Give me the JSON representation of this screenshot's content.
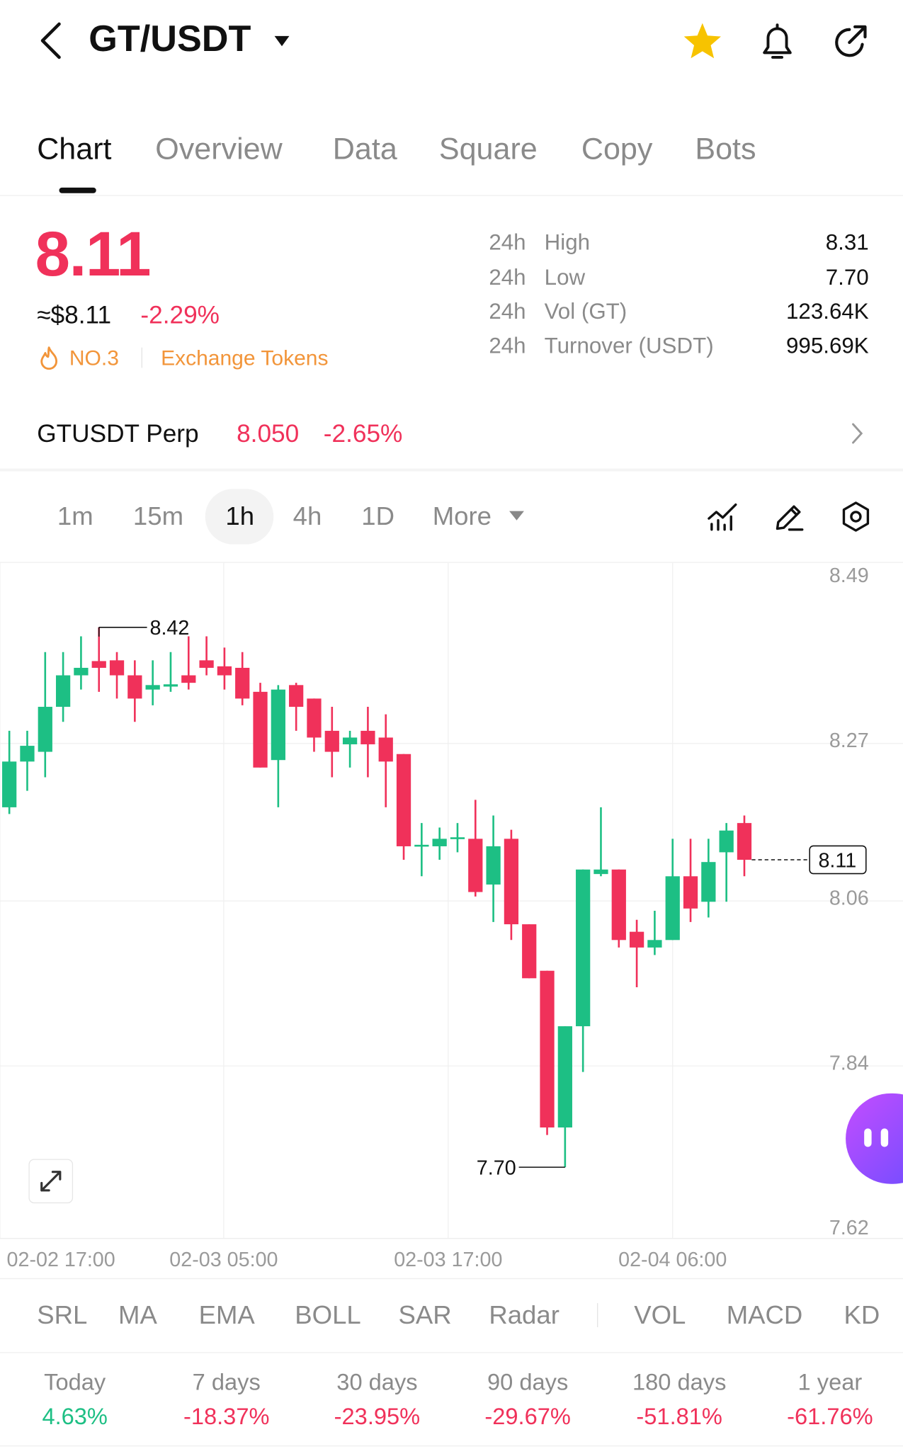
{
  "header": {
    "pair": "GT/USDT"
  },
  "tabs": [
    "Chart",
    "Overview",
    "Data",
    "Square",
    "Copy",
    "Bots"
  ],
  "price": {
    "last": "8.11",
    "usd": "≈$8.11",
    "change": "-2.29%",
    "rank": "NO.3",
    "category": "Exchange Tokens"
  },
  "stats": [
    {
      "period": "24h",
      "label": "High",
      "value": "8.31"
    },
    {
      "period": "24h",
      "label": "Low",
      "value": "7.70"
    },
    {
      "period": "24h",
      "label": "Vol (GT)",
      "value": "123.64K"
    },
    {
      "period": "24h",
      "label": "Turnover (USDT)",
      "value": "995.69K"
    }
  ],
  "perp": {
    "name": "GTUSDT Perp",
    "price": "8.050",
    "change": "-2.65%"
  },
  "timeframes": [
    "1m",
    "15m",
    "1h",
    "4h",
    "1D",
    "More"
  ],
  "chart_data": {
    "type": "candlestick",
    "up_color": "#1dbf84",
    "down_color": "#f0315a",
    "open": [
      8.18,
      8.241,
      8.254,
      8.314,
      8.356,
      8.375,
      8.376,
      8.356,
      8.337,
      8.341,
      8.356,
      8.376,
      8.368,
      8.366,
      8.334,
      8.243,
      8.343,
      8.325,
      8.282,
      8.264,
      8.282,
      8.273,
      8.251,
      8.128,
      8.128,
      8.138,
      8.138,
      8.077,
      8.138,
      8.024,
      7.962,
      7.753,
      7.888,
      8.091,
      8.097,
      8.014,
      7.993,
      8.003,
      8.088,
      8.054,
      8.12,
      8.159
    ],
    "high": [
      8.282,
      8.282,
      8.387,
      8.387,
      8.408,
      8.42,
      8.387,
      8.376,
      8.376,
      8.387,
      8.408,
      8.408,
      8.393,
      8.387,
      8.346,
      8.343,
      8.346,
      8.325,
      8.314,
      8.282,
      8.314,
      8.304,
      8.251,
      8.159,
      8.153,
      8.159,
      8.19,
      8.169,
      8.15,
      8.024,
      7.962,
      7.888,
      8.097,
      8.18,
      8.097,
      8.03,
      8.042,
      8.138,
      8.138,
      8.138,
      8.159,
      8.169
    ],
    "low": [
      8.171,
      8.202,
      8.22,
      8.294,
      8.337,
      8.334,
      8.325,
      8.294,
      8.316,
      8.334,
      8.337,
      8.356,
      8.337,
      8.316,
      8.233,
      8.18,
      8.282,
      8.254,
      8.22,
      8.233,
      8.22,
      8.18,
      8.11,
      8.088,
      8.11,
      8.12,
      8.061,
      8.027,
      8.003,
      7.952,
      7.743,
      7.7,
      7.827,
      8.088,
      7.993,
      7.94,
      7.983,
      8.003,
      8.027,
      8.033,
      8.054,
      8.088
    ],
    "close": [
      8.241,
      8.262,
      8.314,
      8.356,
      8.366,
      8.366,
      8.356,
      8.325,
      8.343,
      8.344,
      8.346,
      8.366,
      8.356,
      8.325,
      8.233,
      8.337,
      8.314,
      8.273,
      8.254,
      8.273,
      8.264,
      8.241,
      8.128,
      8.13,
      8.138,
      8.14,
      8.067,
      8.128,
      8.024,
      7.952,
      7.753,
      7.888,
      8.097,
      8.097,
      8.003,
      7.993,
      8.003,
      8.088,
      8.045,
      8.107,
      8.149,
      8.11
    ],
    "ylim": [
      7.605,
      8.506
    ],
    "yticks": [
      8.49,
      8.27,
      8.06,
      7.84,
      7.62
    ],
    "xlim": [
      -0.52,
      49.85
    ],
    "xticks": [
      {
        "value": -0.52,
        "label": "02-02 17:00"
      },
      {
        "value": 11.96,
        "label": "02-03 05:00"
      },
      {
        "value": 24.48,
        "label": "02-03 17:00"
      },
      {
        "value": 37.0,
        "label": "02-04 06:00"
      }
    ],
    "max_label": 8.42,
    "min_label": {
      "value": 7.7,
      "label": "7.70"
    },
    "last_price": 8.11
  },
  "indicators": [
    "SRL",
    "MA",
    "EMA",
    "BOLL",
    "SAR",
    "Radar",
    "VOL",
    "MACD",
    "KD"
  ],
  "performance": [
    {
      "period": "Today",
      "change": "4.63%"
    },
    {
      "period": "7 days",
      "change": "-18.37%"
    },
    {
      "period": "30 days",
      "change": "-23.95%"
    },
    {
      "period": "90 days",
      "change": "-29.67%"
    },
    {
      "period": "180 days",
      "change": "-51.81%"
    },
    {
      "period": "1 year",
      "change": "-61.76%"
    }
  ]
}
